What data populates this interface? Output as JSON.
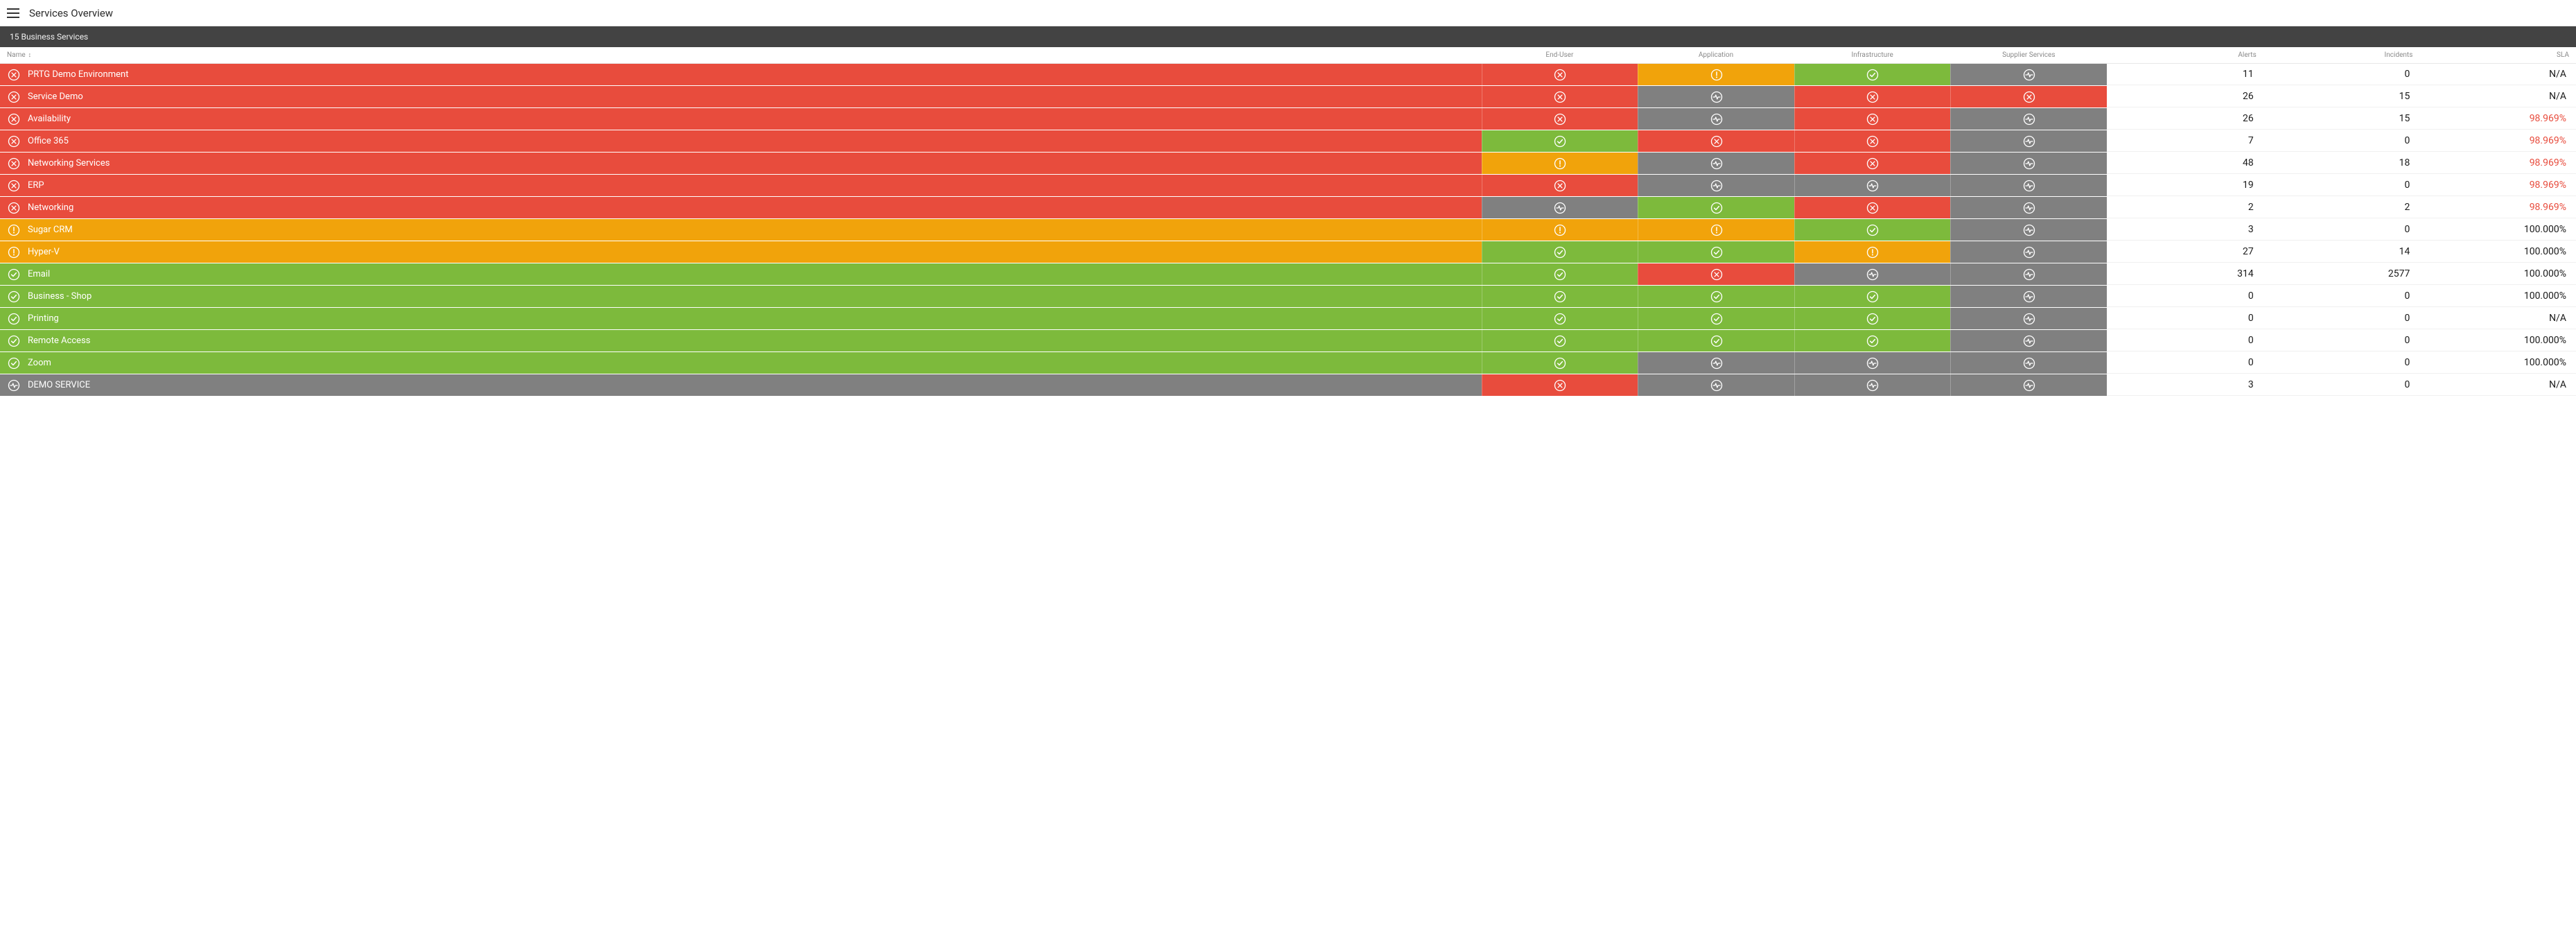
{
  "colors": {
    "red": "#e84c3d",
    "orange": "#f1a30b",
    "green": "#7dba3c",
    "grey": "#808080",
    "header_text": "#8a8a8a",
    "subbar_bg": "#434343",
    "white": "#ffffff",
    "sla_red": "#e84c3d",
    "text_black": "#1a1a1a"
  },
  "topbar": {
    "title": "Services Overview"
  },
  "subbar": {
    "label": "15 Business Services"
  },
  "columns": {
    "name": "Name",
    "end_user": "End-User",
    "application": "Application",
    "infrastructure": "Infrastructure",
    "supplier": "Supplier Services",
    "alerts": "Alerts",
    "incidents": "Incidents",
    "sla": "SLA"
  },
  "status_legend": {
    "x": "error",
    "w": "warning",
    "c": "ok",
    "p": "pulse-unknown"
  },
  "rows": [
    {
      "name": "PRTG Demo Environment",
      "row_status": "x",
      "cells": [
        "x",
        "w",
        "c",
        "p"
      ],
      "alerts": 11,
      "incidents": 0,
      "sla": "N/A",
      "sla_red": false
    },
    {
      "name": "Service Demo",
      "row_status": "x",
      "cells": [
        "x",
        "p",
        "x",
        "x"
      ],
      "alerts": 26,
      "incidents": 15,
      "sla": "N/A",
      "sla_red": false
    },
    {
      "name": "Availability",
      "row_status": "x",
      "cells": [
        "x",
        "p",
        "x",
        "p"
      ],
      "alerts": 26,
      "incidents": 15,
      "sla": "98.969%",
      "sla_red": true
    },
    {
      "name": "Office 365",
      "row_status": "x",
      "cells": [
        "c",
        "x",
        "x",
        "p"
      ],
      "alerts": 7,
      "incidents": 0,
      "sla": "98.969%",
      "sla_red": true
    },
    {
      "name": "Networking Services",
      "row_status": "x",
      "cells": [
        "w",
        "p",
        "x",
        "p"
      ],
      "alerts": 48,
      "incidents": 18,
      "sla": "98.969%",
      "sla_red": true
    },
    {
      "name": "ERP",
      "row_status": "x",
      "cells": [
        "x",
        "p",
        "p",
        "p"
      ],
      "alerts": 19,
      "incidents": 0,
      "sla": "98.969%",
      "sla_red": true
    },
    {
      "name": "Networking",
      "row_status": "x",
      "cells": [
        "p",
        "c",
        "x",
        "p"
      ],
      "alerts": 2,
      "incidents": 2,
      "sla": "98.969%",
      "sla_red": true
    },
    {
      "name": "Sugar CRM",
      "row_status": "w",
      "cells": [
        "w",
        "w",
        "c",
        "p"
      ],
      "alerts": 3,
      "incidents": 0,
      "sla": "100.000%",
      "sla_red": false
    },
    {
      "name": "Hyper-V",
      "row_status": "w",
      "cells": [
        "c",
        "c",
        "w",
        "p"
      ],
      "alerts": 27,
      "incidents": 14,
      "sla": "100.000%",
      "sla_red": false
    },
    {
      "name": "Email",
      "row_status": "c",
      "cells": [
        "c",
        "x",
        "p",
        "p"
      ],
      "alerts": 314,
      "incidents": 2577,
      "sla": "100.000%",
      "sla_red": false
    },
    {
      "name": "Business - Shop",
      "row_status": "c",
      "cells": [
        "c",
        "c",
        "c",
        "p"
      ],
      "alerts": 0,
      "incidents": 0,
      "sla": "100.000%",
      "sla_red": false
    },
    {
      "name": "Printing",
      "row_status": "c",
      "cells": [
        "c",
        "c",
        "c",
        "p"
      ],
      "alerts": 0,
      "incidents": 0,
      "sla": "N/A",
      "sla_red": false
    },
    {
      "name": "Remote Access",
      "row_status": "c",
      "cells": [
        "c",
        "c",
        "c",
        "p"
      ],
      "alerts": 0,
      "incidents": 0,
      "sla": "100.000%",
      "sla_red": false
    },
    {
      "name": "Zoom",
      "row_status": "c",
      "cells": [
        "c",
        "p",
        "p",
        "p"
      ],
      "alerts": 0,
      "incidents": 0,
      "sla": "100.000%",
      "sla_red": false
    },
    {
      "name": "DEMO SERVICE",
      "row_status": "p",
      "cells": [
        "x",
        "p",
        "p",
        "p"
      ],
      "alerts": 3,
      "incidents": 0,
      "sla": "N/A",
      "sla_red": false
    }
  ]
}
